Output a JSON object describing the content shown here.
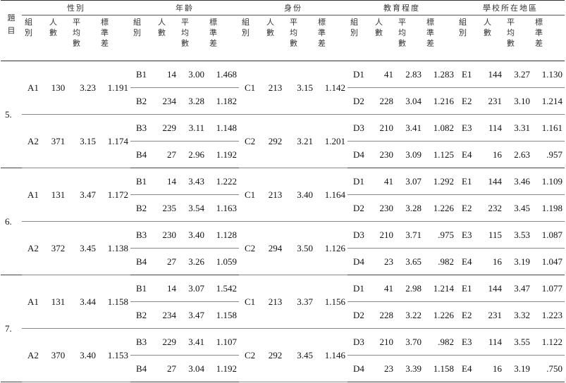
{
  "header": {
    "item": "題目",
    "groups": [
      {
        "title": "性別",
        "columns": [
          "組別",
          "人數",
          "平均數",
          "標準差"
        ]
      },
      {
        "title": "年齡",
        "columns": [
          "組別",
          "人數",
          "平均數",
          "標準差"
        ]
      },
      {
        "title": "身份",
        "columns": [
          "組別",
          "人數",
          "平均數",
          "標準差"
        ]
      },
      {
        "title": "教育程度",
        "columns": [
          "組別",
          "人數",
          "平均數",
          "標準差"
        ]
      },
      {
        "title": "學校所在地區",
        "columns": [
          "組別",
          "人數",
          "平均數",
          "標準差"
        ]
      }
    ]
  },
  "items": [
    {
      "number": "5.",
      "gender": [
        [
          "A1",
          "130",
          "3.23",
          "1.191"
        ],
        [
          "A2",
          "371",
          "3.15",
          "1.174"
        ]
      ],
      "age": [
        [
          "B1",
          "14",
          "3.00",
          "1.468"
        ],
        [
          "B2",
          "234",
          "3.28",
          "1.182"
        ],
        [
          "B3",
          "229",
          "3.11",
          "1.148"
        ],
        [
          "B4",
          "27",
          "2.96",
          "1.192"
        ]
      ],
      "status": [
        [
          "C1",
          "213",
          "3.15",
          "1.142"
        ],
        [
          "C2",
          "292",
          "3.21",
          "1.201"
        ]
      ],
      "education": [
        [
          "D1",
          "41",
          "2.83",
          "1.283"
        ],
        [
          "D2",
          "228",
          "3.04",
          "1.216"
        ],
        [
          "D3",
          "210",
          "3.41",
          "1.082"
        ],
        [
          "D4",
          "230",
          "3.09",
          "1.125"
        ]
      ],
      "region": [
        [
          "E1",
          "144",
          "3.27",
          "1.130"
        ],
        [
          "E2",
          "231",
          "3.10",
          "1.214"
        ],
        [
          "E3",
          "114",
          "3.31",
          "1.161"
        ],
        [
          "E4",
          "16",
          "2.63",
          ".957"
        ]
      ]
    },
    {
      "number": "6.",
      "gender": [
        [
          "A1",
          "131",
          "3.47",
          "1.172"
        ],
        [
          "A2",
          "372",
          "3.45",
          "1.138"
        ]
      ],
      "age": [
        [
          "B1",
          "14",
          "3.43",
          "1.222"
        ],
        [
          "B2",
          "235",
          "3.54",
          "1.163"
        ],
        [
          "B3",
          "230",
          "3.40",
          "1.128"
        ],
        [
          "B4",
          "27",
          "3.26",
          "1.059"
        ]
      ],
      "status": [
        [
          "C1",
          "213",
          "3.40",
          "1.164"
        ],
        [
          "C2",
          "294",
          "3.50",
          "1.126"
        ]
      ],
      "education": [
        [
          "D1",
          "41",
          "3.07",
          "1.292"
        ],
        [
          "D2",
          "230",
          "3.28",
          "1.226"
        ],
        [
          "D3",
          "210",
          "3.71",
          ".975"
        ],
        [
          "D4",
          "23",
          "3.65",
          ".982"
        ]
      ],
      "region": [
        [
          "E1",
          "144",
          "3.46",
          "1.109"
        ],
        [
          "E2",
          "232",
          "3.45",
          "1.198"
        ],
        [
          "E3",
          "115",
          "3.53",
          "1.087"
        ],
        [
          "E4",
          "16",
          "3.19",
          "1.047"
        ]
      ]
    },
    {
      "number": "7.",
      "gender": [
        [
          "A1",
          "131",
          "3.44",
          "1.158"
        ],
        [
          "A2",
          "370",
          "3.40",
          "1.153"
        ]
      ],
      "age": [
        [
          "B1",
          "14",
          "3.07",
          "1.542"
        ],
        [
          "B2",
          "234",
          "3.47",
          "1.158"
        ],
        [
          "B3",
          "229",
          "3.41",
          "1.107"
        ],
        [
          "B4",
          "27",
          "3.04",
          "1.192"
        ]
      ],
      "status": [
        [
          "C1",
          "213",
          "3.37",
          "1.156"
        ],
        [
          "C2",
          "292",
          "3.45",
          "1.146"
        ]
      ],
      "education": [
        [
          "D1",
          "41",
          "2.98",
          "1.214"
        ],
        [
          "D2",
          "228",
          "3.22",
          "1.226"
        ],
        [
          "D3",
          "210",
          "3.70",
          ".982"
        ],
        [
          "D4",
          "23",
          "3.39",
          "1.158"
        ]
      ],
      "region": [
        [
          "E1",
          "144",
          "3.47",
          "1.077"
        ],
        [
          "E2",
          "231",
          "3.32",
          "1.223"
        ],
        [
          "E3",
          "114",
          "3.55",
          "1.122"
        ],
        [
          "E4",
          "16",
          "3.19",
          ".750"
        ]
      ]
    }
  ]
}
